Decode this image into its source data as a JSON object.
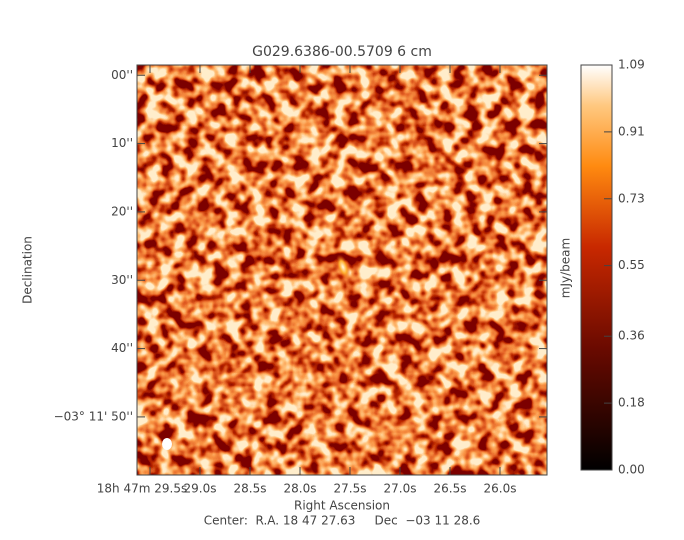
{
  "chart_data": {
    "type": "image",
    "title": "G029.6386-00.5709 6 cm",
    "xlabel": "Right Ascension",
    "ylabel": "Declination",
    "footer": "Center:  R.A. 18 47 27.63     Dec  −03 11 28.6",
    "xlim": [
      29.63,
      25.53
    ],
    "xticks": [
      {
        "value": 29.5,
        "label": "18h 47m 29.5s"
      },
      {
        "value": 29.0,
        "label": "29.0s"
      },
      {
        "value": 28.5,
        "label": "28.5s"
      },
      {
        "value": 28.0,
        "label": "28.0s"
      },
      {
        "value": 27.5,
        "label": "27.5s"
      },
      {
        "value": 27.0,
        "label": "27.0s"
      },
      {
        "value": 26.5,
        "label": "26.5s"
      },
      {
        "value": 26.0,
        "label": "26.0s"
      }
    ],
    "ylim": [
      -1.5,
      58.5
    ],
    "yticks": [
      {
        "value": 0,
        "label": "00''"
      },
      {
        "value": 10,
        "label": "10''"
      },
      {
        "value": 20,
        "label": "20''"
      },
      {
        "value": 30,
        "label": "30''"
      },
      {
        "value": 40,
        "label": "40''"
      },
      {
        "value": 50,
        "label": "−03° 11' 50''"
      }
    ],
    "colorbar": {
      "label": "mJy/beam",
      "lim": [
        0,
        1.09
      ],
      "ticks": [
        {
          "value": 0,
          "label": "0.00"
        },
        0.18,
        0.36,
        0.55,
        0.73,
        0.91,
        1.09
      ]
    }
  }
}
